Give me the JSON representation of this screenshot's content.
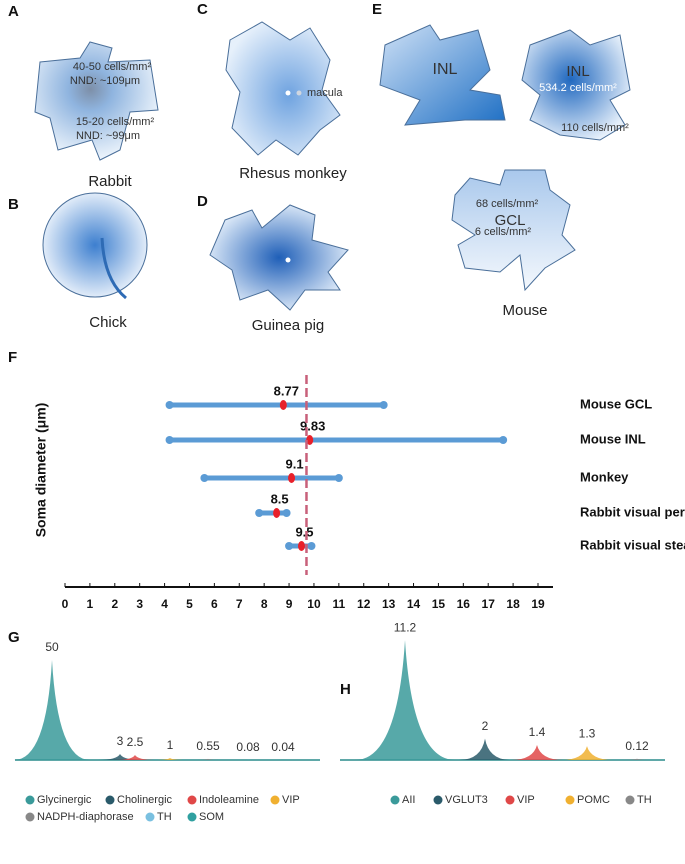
{
  "panels": [
    {
      "letter": "A",
      "labels": [
        "40-50 cells/mm²",
        "NND: ~109μm",
        "15-20 cells/mm²",
        "NND: ~99μm"
      ],
      "caption": "Rabbit"
    },
    {
      "letter": "B",
      "caption": "Chick"
    },
    {
      "letter": "C",
      "labels": [
        "macula"
      ],
      "caption": "Rhesus monkey"
    },
    {
      "letter": "D",
      "caption": "Guinea pig"
    },
    {
      "letter": "E",
      "labels": [
        "INL",
        "INL",
        "534.2 cells/mm²",
        "110 cells/mm²",
        "68 cells/mm²",
        "GCL",
        "6 cells/mm²"
      ],
      "caption": "Mouse"
    }
  ],
  "chart_data": [
    {
      "type": "range",
      "panel": "F",
      "ylabel": "Soma diameter (μm)",
      "categories": [
        "Mouse GCL",
        "Mouse INL",
        "Monkey",
        "Rabbit visual peripheral",
        "Rabbit visual steak"
      ],
      "min": [
        4.2,
        4.2,
        5.6,
        7.8,
        9.0
      ],
      "max": [
        12.8,
        17.6,
        11.0,
        8.9,
        9.9
      ],
      "values": [
        8.77,
        9.83,
        9.1,
        8.5,
        9.5
      ],
      "ref_line": 9.7,
      "xlim": [
        0,
        19
      ],
      "xticks": [
        0,
        1,
        2,
        3,
        4,
        5,
        6,
        7,
        8,
        9,
        10,
        11,
        12,
        13,
        14,
        15,
        16,
        17,
        18,
        19
      ],
      "range_color": "#5b9bd5",
      "mean_color": "#e8202a",
      "ref_color": "#c8607a"
    },
    {
      "type": "peaks",
      "panel": "G",
      "categories": [
        "Glycinergic",
        "Cholinergic",
        "Indoleamine",
        "VIP",
        "NADPH-diaphorase",
        "TH",
        "SOM"
      ],
      "values": [
        50,
        3,
        2.5,
        1,
        0.55,
        0.08,
        0.04
      ],
      "colors": [
        "#3a9a9a",
        "#2a5a6a",
        "#e04848",
        "#f0b030",
        "#888888",
        "#7ac0e0",
        "#30a0a0"
      ]
    },
    {
      "type": "peaks",
      "panel": "H",
      "categories": [
        "AII",
        "VGLUT3",
        "VIP",
        "POMC",
        "TH"
      ],
      "values": [
        11.2,
        2,
        1.4,
        1.3,
        0.12
      ],
      "colors": [
        "#3a9a9a",
        "#2a5a6a",
        "#e04848",
        "#f0b030",
        "#888888"
      ]
    }
  ]
}
